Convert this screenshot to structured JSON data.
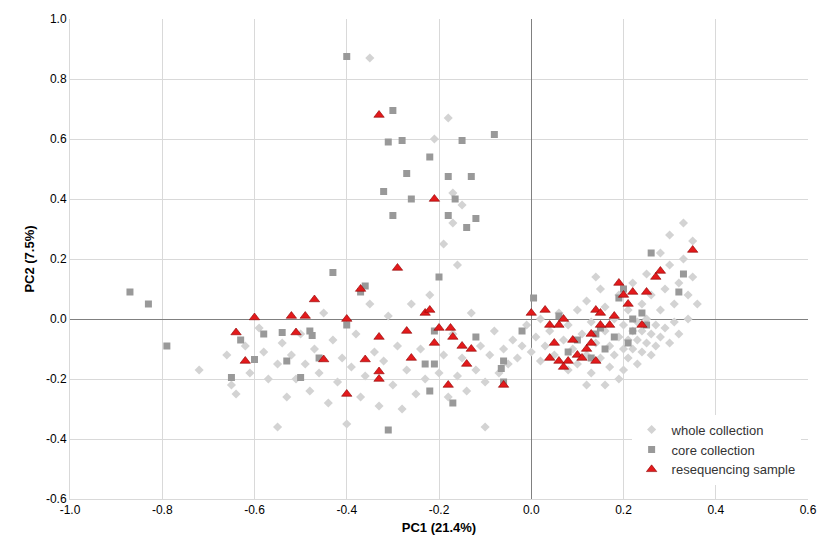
{
  "chart_data": {
    "type": "scatter",
    "x_label": "PC1 (21.4%)",
    "y_label": "PC2 (7.5%)",
    "xlim": [
      -1.0,
      0.6
    ],
    "xticks": [
      {
        "value": -1.0,
        "label": "-1.0"
      },
      -0.8,
      -0.6,
      -0.4,
      -0.2,
      {
        "value": 0,
        "label": "0.0"
      },
      0.2,
      0.4,
      0.6
    ],
    "ylim": [
      -0.6,
      1.0
    ],
    "yticks": [
      -0.6,
      -0.4,
      -0.2,
      {
        "value": 0,
        "label": "0.0"
      },
      0.2,
      0.4,
      0.6,
      0.8,
      {
        "value": 1.0,
        "label": "1.0"
      }
    ],
    "grid": true,
    "legend": "lower right",
    "series": [
      {
        "name": "whole collection",
        "color": "#d3d3d3",
        "marker": "diamond",
        "x": [
          -0.72,
          -0.66,
          -0.65,
          -0.64,
          -0.62,
          -0.61,
          -0.59,
          -0.58,
          -0.57,
          -0.55,
          -0.55,
          -0.54,
          -0.53,
          -0.52,
          -0.51,
          -0.5,
          -0.49,
          -0.48,
          -0.47,
          -0.46,
          -0.45,
          -0.44,
          -0.43,
          -0.42,
          -0.41,
          -0.4,
          -0.39,
          -0.38,
          -0.37,
          -0.36,
          -0.35,
          -0.35,
          -0.34,
          -0.33,
          -0.32,
          -0.31,
          -0.3,
          -0.29,
          -0.28,
          -0.27,
          -0.26,
          -0.25,
          -0.24,
          -0.23,
          -0.22,
          -0.21,
          -0.2,
          -0.19,
          -0.19,
          -0.18,
          -0.18,
          -0.17,
          -0.17,
          -0.16,
          -0.16,
          -0.15,
          -0.14,
          -0.13,
          -0.12,
          -0.11,
          -0.1,
          -0.1,
          -0.09,
          -0.08,
          -0.07,
          -0.06,
          -0.05,
          -0.04,
          -0.03,
          -0.02,
          -0.01,
          0.0,
          0.01,
          0.02,
          0.02,
          0.03,
          -0.17,
          -0.15,
          0.04,
          0.05,
          0.06,
          0.07,
          0.08,
          0.08,
          0.09,
          0.1,
          0.1,
          0.11,
          0.12,
          0.12,
          0.13,
          0.13,
          0.14,
          0.15,
          0.15,
          0.16,
          0.16,
          0.17,
          0.17,
          0.18,
          0.18,
          0.19,
          0.19,
          0.2,
          0.2,
          0.2,
          0.21,
          0.21,
          0.21,
          0.22,
          0.22,
          0.22,
          0.23,
          0.23,
          0.23,
          0.24,
          0.24,
          0.24,
          0.25,
          0.25,
          0.25,
          0.26,
          0.26,
          0.26,
          0.27,
          0.27,
          0.28,
          0.28,
          0.29,
          0.29,
          0.3,
          0.3,
          0.31,
          0.31,
          0.32,
          0.32,
          0.33,
          0.33,
          0.34,
          0.34,
          0.35,
          0.35,
          0.36,
          0.3,
          0.28,
          0.19,
          0.16,
          0.14,
          0.12
        ],
        "y": [
          -0.17,
          -0.12,
          -0.22,
          -0.25,
          -0.09,
          -0.18,
          -0.03,
          -0.11,
          -0.2,
          -0.36,
          -0.15,
          -0.08,
          -0.26,
          -0.12,
          -0.2,
          -0.05,
          -0.15,
          -0.24,
          -0.1,
          -0.18,
          0.02,
          -0.28,
          -0.07,
          -0.21,
          -0.13,
          -0.35,
          -0.16,
          -0.05,
          -0.26,
          -0.19,
          0.05,
          0.87,
          -0.11,
          -0.29,
          -0.14,
          0.01,
          -0.22,
          -0.09,
          -0.3,
          -0.17,
          0.05,
          -0.25,
          -0.1,
          -0.2,
          0.08,
          0.6,
          -0.18,
          0.25,
          -0.12,
          0.67,
          -0.26,
          0.42,
          -0.05,
          0.18,
          -0.19,
          -0.13,
          -0.24,
          0.02,
          -0.17,
          -0.09,
          -0.36,
          -0.21,
          -0.12,
          -0.04,
          -0.18,
          -0.1,
          -0.15,
          -0.07,
          -0.13,
          -0.09,
          -0.02,
          -0.11,
          -0.06,
          -0.14,
          0.0,
          -0.09,
          0.32,
          0.38,
          -0.04,
          -0.12,
          0.02,
          -0.07,
          -0.17,
          -0.02,
          -0.1,
          0.03,
          -0.15,
          -0.05,
          -0.12,
          0.06,
          -0.01,
          -0.18,
          -0.08,
          0.1,
          -0.13,
          -0.04,
          0.04,
          -0.16,
          -0.09,
          0.0,
          -0.12,
          -0.06,
          0.08,
          -0.02,
          -0.1,
          -0.17,
          0.03,
          -0.07,
          -0.13,
          -0.04,
          0.12,
          -0.1,
          -0.01,
          -0.07,
          -0.15,
          0.05,
          -0.04,
          -0.11,
          -0.08,
          0.15,
          0.0,
          -0.05,
          -0.12,
          0.08,
          -0.02,
          -0.09,
          0.03,
          -0.06,
          0.1,
          -0.03,
          0.18,
          -0.08,
          0.05,
          -0.01,
          0.12,
          -0.05,
          0.32,
          0.2,
          0.08,
          0.0,
          0.26,
          0.14,
          0.05,
          0.28,
          0.22,
          -0.2,
          -0.22,
          0.14,
          -0.22
        ]
      },
      {
        "name": "core collection",
        "color": "#999999",
        "marker": "square",
        "x": [
          -0.4,
          -0.3,
          -0.28,
          -0.31,
          -0.08,
          -0.15,
          -0.32,
          -0.27,
          -0.22,
          -0.3,
          -0.26,
          -0.18,
          -0.165,
          -0.13,
          -0.18,
          -0.14,
          -0.12,
          -0.43,
          -0.36,
          -0.37,
          -0.2,
          -0.87,
          -0.83,
          -0.79,
          -0.65,
          -0.63,
          -0.6,
          -0.58,
          -0.54,
          -0.48,
          -0.475,
          -0.53,
          -0.5,
          -0.46,
          -0.4,
          -0.31,
          -0.23,
          -0.21,
          -0.22,
          -0.21,
          -0.17,
          -0.12,
          -0.065,
          -0.06,
          -0.06,
          -0.02,
          0.005,
          0.06,
          0.08,
          0.1,
          0.13,
          0.15,
          0.16,
          0.19,
          0.2,
          0.22,
          0.24,
          0.26,
          0.32,
          0.33,
          0.22,
          0.25,
          0.21,
          0.18,
          0.14
        ],
        "y": [
          0.875,
          0.695,
          0.595,
          0.59,
          0.615,
          0.595,
          0.425,
          0.485,
          0.54,
          0.345,
          0.4,
          0.475,
          0.4,
          0.475,
          0.345,
          0.305,
          0.335,
          0.155,
          0.11,
          0.09,
          0.14,
          0.09,
          0.05,
          -0.09,
          -0.195,
          -0.07,
          -0.135,
          -0.05,
          -0.045,
          -0.04,
          -0.055,
          -0.14,
          -0.195,
          -0.13,
          -0.02,
          -0.37,
          -0.15,
          -0.15,
          -0.24,
          -0.04,
          -0.28,
          -0.06,
          -0.165,
          -0.21,
          -0.14,
          -0.04,
          0.07,
          0.01,
          -0.11,
          -0.07,
          -0.13,
          -0.03,
          -0.1,
          0.07,
          0.1,
          0.0,
          0.02,
          0.22,
          0.09,
          0.15,
          -0.04,
          -0.02,
          -0.08,
          -0.06,
          -0.05
        ]
      },
      {
        "name": "resequencing sample",
        "color": "#e31a1c",
        "marker": "triangle-up",
        "x": [
          -0.33,
          -0.21,
          -0.29,
          -0.37,
          -0.47,
          -0.6,
          -0.64,
          -0.62,
          -0.52,
          -0.51,
          -0.49,
          -0.4,
          -0.45,
          -0.36,
          -0.33,
          -0.33,
          -0.33,
          -0.4,
          -0.27,
          -0.26,
          -0.23,
          -0.22,
          -0.21,
          -0.2,
          -0.175,
          -0.17,
          -0.15,
          -0.14,
          -0.13,
          -0.18,
          -0.06,
          0.0,
          0.03,
          0.04,
          0.06,
          0.07,
          0.04,
          0.05,
          0.06,
          0.08,
          0.07,
          0.1,
          0.09,
          0.11,
          0.12,
          0.13,
          0.14,
          0.14,
          0.15,
          0.17,
          0.18,
          0.19,
          0.2,
          0.21,
          0.22,
          0.24,
          0.25,
          0.27,
          0.28,
          0.35,
          0.15,
          0.13
        ],
        "y": [
          0.68,
          0.4,
          0.17,
          0.1,
          0.065,
          0.005,
          -0.045,
          -0.14,
          0.01,
          -0.045,
          0.01,
          0.0,
          -0.135,
          -0.135,
          -0.06,
          -0.175,
          -0.2,
          -0.25,
          -0.04,
          -0.13,
          0.02,
          0.03,
          -0.08,
          -0.03,
          -0.03,
          -0.06,
          -0.09,
          -0.15,
          -0.1,
          -0.22,
          -0.22,
          0.02,
          0.03,
          -0.02,
          -0.02,
          0.0,
          -0.13,
          -0.08,
          -0.14,
          -0.14,
          -0.16,
          -0.12,
          -0.07,
          -0.13,
          -0.1,
          -0.08,
          -0.14,
          0.03,
          0.02,
          -0.02,
          0.01,
          0.12,
          0.08,
          0.05,
          0.09,
          -0.02,
          0.09,
          0.14,
          0.16,
          0.23,
          -0.02,
          -0.05
        ]
      }
    ]
  }
}
